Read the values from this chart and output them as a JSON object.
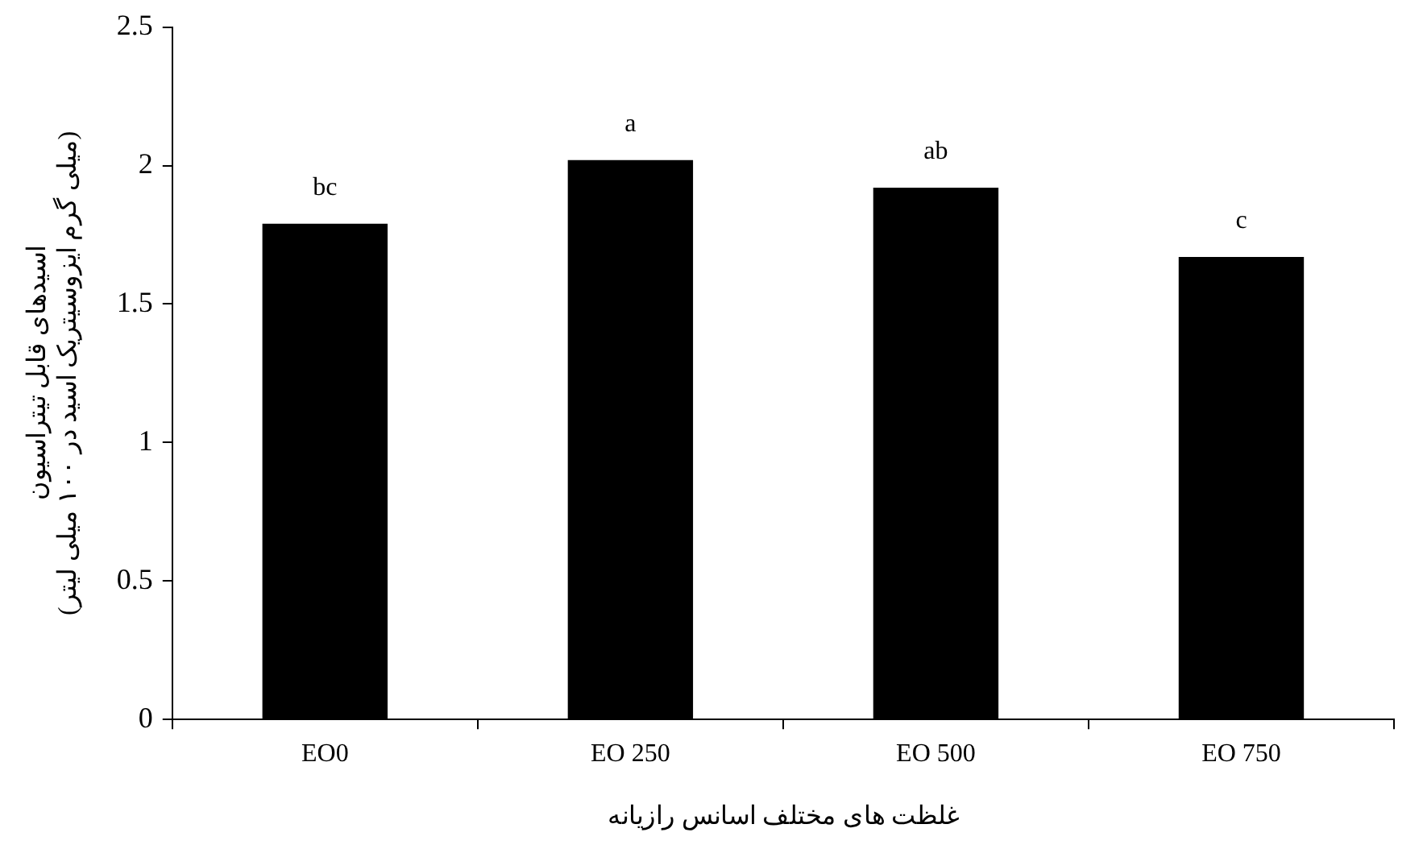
{
  "chart_data": {
    "type": "bar",
    "xlabel": "غلظت های مختلف اسانس رازیانه",
    "ylabel": "اسیدهای قابل تیتراسیون\n(میلی گرم ایزوسیتریک اسید در ۱۰۰ میلی لیتر)",
    "categories": [
      "EO0",
      "EO 250",
      "EO 500",
      "EO 750"
    ],
    "values": [
      1.79,
      2.02,
      1.92,
      1.67
    ],
    "color": "#000000",
    "ylim": [
      0,
      2.5
    ],
    "yticks": [
      0,
      0.5,
      1,
      1.5,
      2,
      2.5
    ],
    "grid": false,
    "legend": false,
    "annotations": [
      {
        "text": "bc",
        "x": "EO0",
        "y": 1.79
      },
      {
        "text": "a",
        "x": "EO 250",
        "y": 2.02
      },
      {
        "text": "ab",
        "x": "EO 500",
        "y": 1.92
      },
      {
        "text": "c",
        "x": "EO 750",
        "y": 1.67
      }
    ]
  }
}
